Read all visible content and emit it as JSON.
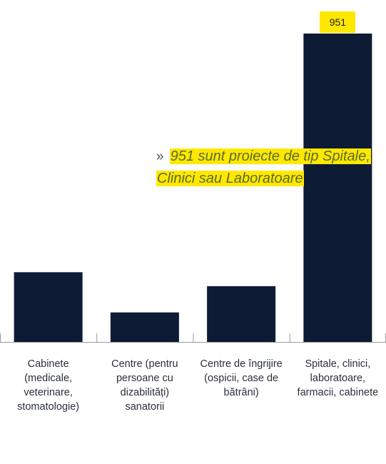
{
  "chart_data": {
    "type": "bar",
    "categories": [
      "Cabinete (medicale, veterinare, stomatologie)",
      "Centre (pentru persoane cu dizabilități) sanatorii",
      "Centre de îngrijire (ospicii, case de bătrâni)",
      "Spitale, clinici, laboratoare, farmacii, cabinete"
    ],
    "values": [
      215,
      91,
      172,
      951
    ],
    "data_labels": [
      "",
      "",
      "",
      "951"
    ],
    "ylim": [
      0,
      951
    ],
    "title": "",
    "xlabel": "",
    "ylabel": "",
    "grid": false,
    "bar_color": "#0d1b35",
    "axis_color": "#9a9a9a"
  },
  "callout": {
    "marker": "»",
    "text": "951 sunt proiecte de tip Spitale, Clinici sau Laboratoare",
    "highlight_color": "#ffe800",
    "text_color": "#5a6a2a"
  }
}
